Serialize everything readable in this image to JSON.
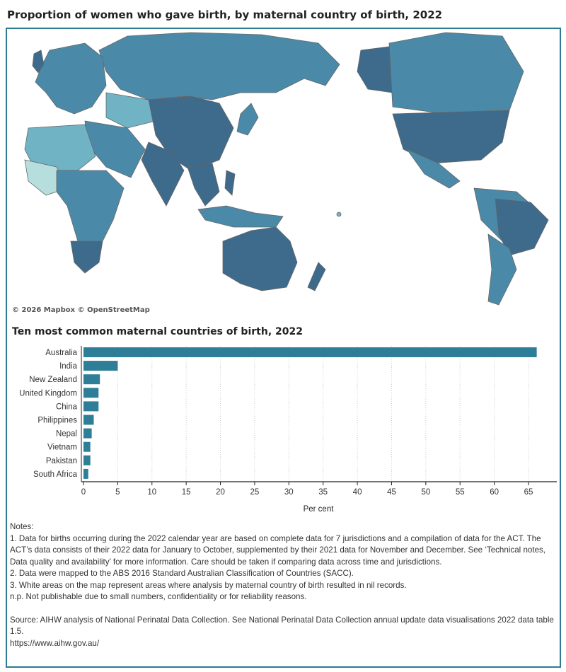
{
  "title": "Proportion of women who gave birth, by maternal country of birth, 2022",
  "map": {
    "credit": "© 2026 Mapbox © OpenStreetMap",
    "colors": {
      "dark": "#3e6a8c",
      "mid": "#4a8aa8",
      "light": "#6fb3c4",
      "pale": "#b6dedd"
    }
  },
  "chart_data": {
    "type": "bar",
    "orientation": "horizontal",
    "title": "Ten most common maternal countries of birth, 2022",
    "xlabel": "Per cent",
    "ylabel": "",
    "categories": [
      "Australia",
      "India",
      "New Zealand",
      "United Kingdom",
      "China",
      "Philippines",
      "Nepal",
      "Vietnam",
      "Pakistan",
      "South Africa"
    ],
    "values": [
      66.2,
      5.0,
      2.4,
      2.2,
      2.2,
      1.5,
      1.2,
      1.0,
      1.0,
      0.7
    ],
    "xlim": [
      0,
      69
    ],
    "xticks": [
      "0",
      "5",
      "10",
      "15",
      "20",
      "25",
      "30",
      "35",
      "40",
      "45",
      "50",
      "55",
      "60",
      "65"
    ],
    "grid": "vertical dotted",
    "bar_color": "#2e7e98"
  },
  "notes": {
    "heading": "Notes:",
    "lines": [
      "1. Data for births occurring during the 2022 calendar year are based on complete data for 7 jurisdictions and a compilation of data for the ACT. The ACT’s data consists of their 2022 data for January to October, supplemented by their 2021 data for November and December. See ‘Technical notes, Data quality and availability’ for more information. Care should be taken if comparing data across time and jurisdictions.",
      "2. Data were mapped to the ABS 2016 Standard Australian Classification of Countries (SACC).",
      "3. White areas on the map represent areas where analysis by maternal country of birth resulted in nil records.",
      "n.p. Not publishable due to small numbers, confidentiality or for reliability reasons."
    ],
    "source": "Source: AIHW analysis of National Perinatal Data Collection. See National Perinatal Data Collection annual update data visualisations 2022 data table 1.5.",
    "url": "https://www.aihw.gov.au/"
  }
}
